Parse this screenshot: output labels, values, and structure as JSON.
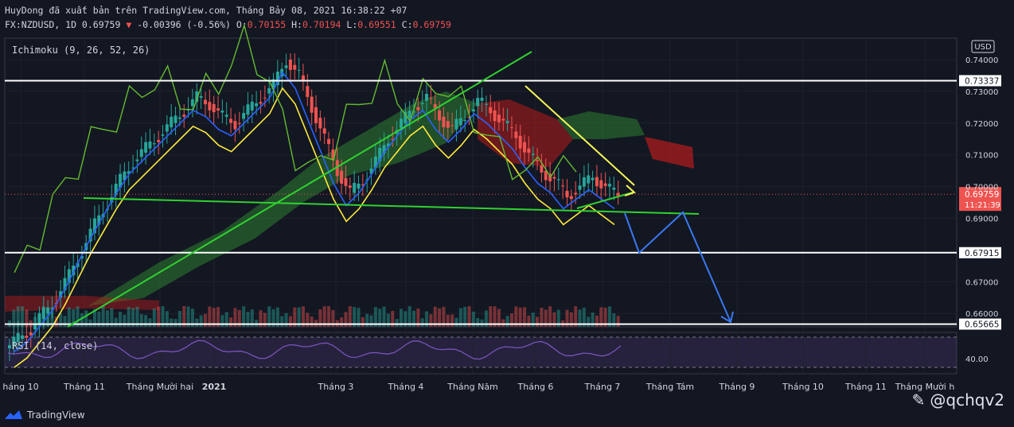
{
  "header": {
    "line1": "HuyDong đã xuất bản trên TradingView.com, Tháng Bảy 08, 2021 16:38:22 +07",
    "symbol": "FX:NZDUSD, 1D 0.69759",
    "change": "-0.00396 (-0.56%)",
    "o_label": "O:",
    "o_value": "0.70155",
    "h_label": "H:",
    "h_value": "0.70194",
    "l_label": "L:",
    "l_value": "0.69551",
    "c_label": "C:",
    "c_value": "0.69759"
  },
  "indicator_label": "Ichimoku (9, 26, 52, 26)",
  "rsi_label": "RSI (14, close)",
  "currency": "USD",
  "footer": {
    "brand": "TradingView",
    "watermark": "@qchqv2"
  },
  "colors": {
    "bg": "#131722",
    "up": "#26a69a",
    "down": "#ef5350",
    "tenkan": "#2962ff",
    "kijun": "#ffeb3b",
    "chikou": "#66bb30",
    "cloud_up": "#2e7d32",
    "cloud_dn": "#b71c1c",
    "rsi": "#7e57c2",
    "trend": "#31d131",
    "forecast": "#3a78f0"
  },
  "chart_data": {
    "type": "candlestick",
    "y_axis": {
      "ticks": [
        "0.74000",
        "0.73000",
        "0.72000",
        "0.71000",
        "0.70000",
        "0.69000",
        "0.67000",
        "0.66000"
      ],
      "tick_values": [
        0.74,
        0.73,
        0.72,
        0.71,
        0.7,
        0.69,
        0.67,
        0.66
      ]
    },
    "price_labels": [
      {
        "label": "0.73337",
        "value": 0.73337,
        "highlight": false
      },
      {
        "label": "0.69759",
        "value": 0.69759,
        "highlight": true,
        "sub": "11:21:39"
      },
      {
        "label": "0.67915",
        "value": 0.67915,
        "highlight": false
      },
      {
        "label": "0.65665",
        "value": 0.65665,
        "highlight": false
      }
    ],
    "horizontal_levels": [
      0.73337,
      0.67915,
      0.65665
    ],
    "x_axis": {
      "ticks": [
        "háng 10",
        "Tháng 11",
        "Tháng Mười hai",
        "2021",
        "Tháng 3",
        "Tháng 4",
        "Tháng Năm",
        "Tháng 6",
        "Tháng 7",
        "Tháng Tám",
        "Tháng 9",
        "Tháng 10",
        "Tháng 11",
        "Tháng Mười h"
      ]
    },
    "rsi": {
      "ticks": [
        "40.00"
      ],
      "tick_values": [
        40
      ]
    },
    "close_approx": [
      0.652,
      0.655,
      0.66,
      0.665,
      0.672,
      0.68,
      0.688,
      0.695,
      0.702,
      0.708,
      0.712,
      0.716,
      0.72,
      0.724,
      0.728,
      0.726,
      0.722,
      0.72,
      0.724,
      0.728,
      0.732,
      0.74,
      0.735,
      0.725,
      0.715,
      0.705,
      0.698,
      0.702,
      0.708,
      0.715,
      0.72,
      0.725,
      0.728,
      0.722,
      0.718,
      0.722,
      0.727,
      0.724,
      0.72,
      0.716,
      0.71,
      0.705,
      0.702,
      0.697,
      0.7,
      0.703,
      0.7,
      0.697
    ]
  }
}
